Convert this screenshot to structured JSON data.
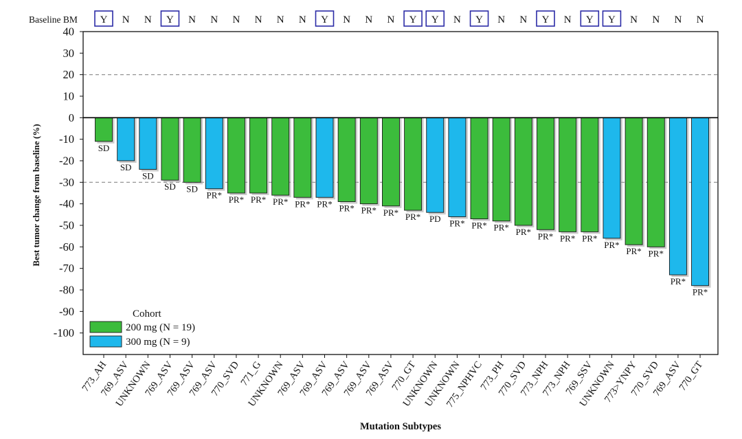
{
  "chart_data": {
    "type": "bar",
    "title": "",
    "xlabel": "Mutation Subtypes",
    "ylabel": "Best tumor change from baseline (%)",
    "ylim": [
      -110,
      40
    ],
    "yticks": [
      40,
      30,
      20,
      10,
      0,
      -10,
      -20,
      -30,
      -40,
      -50,
      -60,
      -70,
      -80,
      -90,
      -100
    ],
    "reference_lines": [
      20,
      -30
    ],
    "grid": false,
    "baseline_bm_label": "Baseline BM",
    "legend": {
      "title": "Cohort",
      "position": "bottom-left",
      "entries": [
        {
          "label": "200 mg (N = 19)",
          "color": "#3cbc3c"
        },
        {
          "label": "300 mg (N = 9)",
          "color": "#1eb8ec"
        }
      ]
    },
    "colors": {
      "200 mg": "#3cbc3c",
      "300 mg": "#1eb8ec"
    },
    "bars": [
      {
        "category": "773_AH",
        "value": -11,
        "response": "SD",
        "cohort": "200 mg",
        "baseline_bm": "Y"
      },
      {
        "category": "769_ASV",
        "value": -20,
        "response": "SD",
        "cohort": "300 mg",
        "baseline_bm": "N"
      },
      {
        "category": "UNKNOWN",
        "value": -24,
        "response": "SD",
        "cohort": "300 mg",
        "baseline_bm": "N"
      },
      {
        "category": "769_ASV",
        "value": -29,
        "response": "SD",
        "cohort": "200 mg",
        "baseline_bm": "Y"
      },
      {
        "category": "769_ASV",
        "value": -30,
        "response": "SD",
        "cohort": "200 mg",
        "baseline_bm": "N"
      },
      {
        "category": "769_ASV",
        "value": -33,
        "response": "PR*",
        "cohort": "300 mg",
        "baseline_bm": "N"
      },
      {
        "category": "770_SVD",
        "value": -35,
        "response": "PR*",
        "cohort": "200 mg",
        "baseline_bm": "N"
      },
      {
        "category": "771_G",
        "value": -35,
        "response": "PR*",
        "cohort": "200 mg",
        "baseline_bm": "N"
      },
      {
        "category": "UNKNOWN",
        "value": -36,
        "response": "PR*",
        "cohort": "200 mg",
        "baseline_bm": "N"
      },
      {
        "category": "769_ASV",
        "value": -37,
        "response": "PR*",
        "cohort": "200 mg",
        "baseline_bm": "N"
      },
      {
        "category": "769_ASV",
        "value": -37,
        "response": "PR*",
        "cohort": "300 mg",
        "baseline_bm": "Y"
      },
      {
        "category": "769_ASV",
        "value": -39,
        "response": "PR*",
        "cohort": "200 mg",
        "baseline_bm": "N"
      },
      {
        "category": "769_ASV",
        "value": -40,
        "response": "PR*",
        "cohort": "200 mg",
        "baseline_bm": "N"
      },
      {
        "category": "769_ASV",
        "value": -41,
        "response": "PR*",
        "cohort": "200 mg",
        "baseline_bm": "N"
      },
      {
        "category": "770_GT",
        "value": -43,
        "response": "PR*",
        "cohort": "200 mg",
        "baseline_bm": "Y"
      },
      {
        "category": "UNKNOWN",
        "value": -44,
        "response": "PD",
        "cohort": "300 mg",
        "baseline_bm": "Y"
      },
      {
        "category": "UNKNOWN",
        "value": -46,
        "response": "PR*",
        "cohort": "300 mg",
        "baseline_bm": "N"
      },
      {
        "category": "775_NPHVC",
        "value": -47,
        "response": "PR*",
        "cohort": "200 mg",
        "baseline_bm": "Y"
      },
      {
        "category": "773_PH",
        "value": -48,
        "response": "PR*",
        "cohort": "200 mg",
        "baseline_bm": "N"
      },
      {
        "category": "770_SVD",
        "value": -50,
        "response": "PR*",
        "cohort": "200 mg",
        "baseline_bm": "N"
      },
      {
        "category": "773_NPH",
        "value": -52,
        "response": "PR*",
        "cohort": "200 mg",
        "baseline_bm": "Y"
      },
      {
        "category": "773_NPH",
        "value": -53,
        "response": "PR*",
        "cohort": "200 mg",
        "baseline_bm": "N"
      },
      {
        "category": "769_SSV",
        "value": -53,
        "response": "PR*",
        "cohort": "200 mg",
        "baseline_bm": "Y"
      },
      {
        "category": "UNKNOWN",
        "value": -56,
        "response": "PR*",
        "cohort": "300 mg",
        "baseline_bm": "Y"
      },
      {
        "category": "773>YNPY",
        "value": -59,
        "response": "PR*",
        "cohort": "200 mg",
        "baseline_bm": "N"
      },
      {
        "category": "770_SVD",
        "value": -60,
        "response": "PR*",
        "cohort": "200 mg",
        "baseline_bm": "N"
      },
      {
        "category": "769_ASV",
        "value": -73,
        "response": "PR*",
        "cohort": "300 mg",
        "baseline_bm": "N"
      },
      {
        "category": "770_GT",
        "value": -78,
        "response": "PR*",
        "cohort": "300 mg",
        "baseline_bm": "N"
      }
    ]
  }
}
